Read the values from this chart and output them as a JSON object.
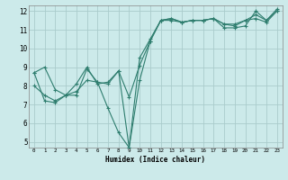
{
  "xlabel": "Humidex (Indice chaleur)",
  "bg_color": "#cceaea",
  "grid_color": "#aacccc",
  "line_color": "#2e7d6e",
  "xlim": [
    -0.5,
    23.5
  ],
  "ylim": [
    4.7,
    12.3
  ],
  "xticks": [
    0,
    1,
    2,
    3,
    4,
    5,
    6,
    7,
    8,
    9,
    10,
    11,
    12,
    13,
    14,
    15,
    16,
    17,
    18,
    19,
    20,
    21,
    22,
    23
  ],
  "yticks": [
    5,
    6,
    7,
    8,
    9,
    10,
    11,
    12
  ],
  "line1_x": [
    0,
    1,
    2,
    3,
    4,
    5,
    6,
    7,
    8,
    9,
    10,
    11,
    12,
    13,
    14,
    15,
    16,
    17,
    18,
    19,
    20,
    21,
    22,
    23
  ],
  "line1_y": [
    8.7,
    9.0,
    7.8,
    7.5,
    8.1,
    9.0,
    8.1,
    8.2,
    8.8,
    4.7,
    9.5,
    10.5,
    11.5,
    11.6,
    11.4,
    11.5,
    11.5,
    11.6,
    11.3,
    11.3,
    11.5,
    11.8,
    11.5,
    12.0
  ],
  "line2_x": [
    0,
    1,
    2,
    3,
    4,
    5,
    6,
    7,
    8,
    9,
    10,
    11,
    12,
    13,
    14,
    15,
    16,
    17,
    18,
    19,
    20,
    21,
    22,
    23
  ],
  "line2_y": [
    8.0,
    7.5,
    7.2,
    7.5,
    7.7,
    8.3,
    8.2,
    8.1,
    8.8,
    7.4,
    9.1,
    10.4,
    11.5,
    11.5,
    11.4,
    11.5,
    11.5,
    11.6,
    11.3,
    11.2,
    11.5,
    11.6,
    11.4,
    12.0
  ],
  "line3_x": [
    0,
    1,
    2,
    3,
    4,
    5,
    6,
    7,
    8,
    9,
    10,
    11,
    12,
    13,
    14,
    15,
    16,
    17,
    18,
    19,
    20,
    21,
    22,
    23
  ],
  "line3_y": [
    8.7,
    7.2,
    7.1,
    7.5,
    7.5,
    8.9,
    8.2,
    6.8,
    5.5,
    4.7,
    8.3,
    10.4,
    11.5,
    11.6,
    11.4,
    11.5,
    11.5,
    11.6,
    11.1,
    11.1,
    11.2,
    12.0,
    11.5,
    12.1
  ]
}
